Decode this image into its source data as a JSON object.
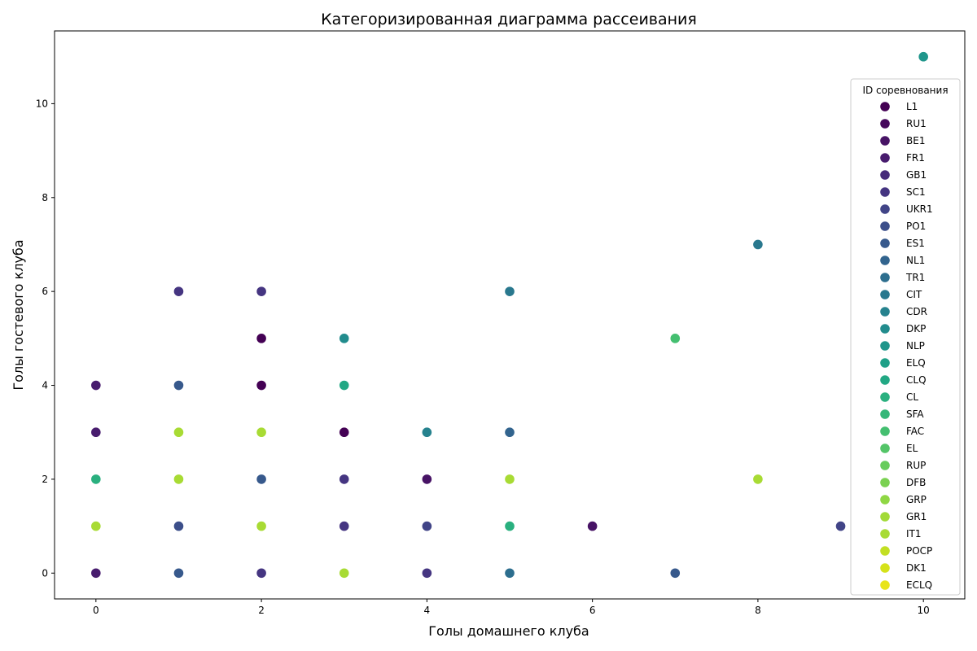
{
  "chart_data": {
    "type": "scatter",
    "title": "Категоризированная диаграмма рассеивания",
    "xlabel": "Голы домашнего клуба",
    "ylabel": "Голы гостевого клуба",
    "xlim": [
      -0.5,
      10.5
    ],
    "ylim": [
      -0.55,
      11.55
    ],
    "xticks": [
      0,
      2,
      4,
      6,
      8,
      10
    ],
    "yticks": [
      0,
      2,
      4,
      6,
      8,
      10
    ],
    "grid": false,
    "legend": {
      "title": "ID соревнования",
      "placement": "right"
    },
    "categories": [
      {
        "name": "L1",
        "color": "#440154"
      },
      {
        "name": "RU1",
        "color": "#46085c"
      },
      {
        "name": "BE1",
        "color": "#471365"
      },
      {
        "name": "FR1",
        "color": "#481c6e"
      },
      {
        "name": "GB1",
        "color": "#472a7a"
      },
      {
        "name": "SC1",
        "color": "#453581"
      },
      {
        "name": "UKR1",
        "color": "#414487"
      },
      {
        "name": "PO1",
        "color": "#3c4f8a"
      },
      {
        "name": "ES1",
        "color": "#37598c"
      },
      {
        "name": "NL1",
        "color": "#32648e"
      },
      {
        "name": "TR1",
        "color": "#2d6e8e"
      },
      {
        "name": "CIT",
        "color": "#29788e"
      },
      {
        "name": "CDR",
        "color": "#26828e"
      },
      {
        "name": "DKP",
        "color": "#228c8d"
      },
      {
        "name": "NLP",
        "color": "#1f968b"
      },
      {
        "name": "ELQ",
        "color": "#1fa088"
      },
      {
        "name": "CLQ",
        "color": "#22a884"
      },
      {
        "name": "CL",
        "color": "#2ab07f"
      },
      {
        "name": "SFA",
        "color": "#35b779"
      },
      {
        "name": "FAC",
        "color": "#44bf70"
      },
      {
        "name": "EL",
        "color": "#54c568"
      },
      {
        "name": "RUP",
        "color": "#67cc5c"
      },
      {
        "name": "DFB",
        "color": "#7ad151"
      },
      {
        "name": "GRP",
        "color": "#8fd744"
      },
      {
        "name": "GR1",
        "color": "#a2da37"
      },
      {
        "name": "IT1",
        "color": "#a8db34"
      },
      {
        "name": "POCP",
        "color": "#c2df23"
      },
      {
        "name": "DK1",
        "color": "#d5e21a"
      },
      {
        "name": "ECLQ",
        "color": "#e8e419"
      }
    ],
    "points": [
      {
        "x": 0,
        "y": 0,
        "category": "FR1"
      },
      {
        "x": 0,
        "y": 1,
        "category": "IT1"
      },
      {
        "x": 0,
        "y": 2,
        "category": "CL"
      },
      {
        "x": 0,
        "y": 3,
        "category": "FR1"
      },
      {
        "x": 0,
        "y": 4,
        "category": "FR1"
      },
      {
        "x": 1,
        "y": 0,
        "category": "ES1"
      },
      {
        "x": 1,
        "y": 1,
        "category": "PO1"
      },
      {
        "x": 1,
        "y": 2,
        "category": "IT1"
      },
      {
        "x": 1,
        "y": 3,
        "category": "IT1"
      },
      {
        "x": 1,
        "y": 4,
        "category": "ES1"
      },
      {
        "x": 1,
        "y": 6,
        "category": "SC1"
      },
      {
        "x": 2,
        "y": 0,
        "category": "SC1"
      },
      {
        "x": 2,
        "y": 1,
        "category": "IT1"
      },
      {
        "x": 2,
        "y": 2,
        "category": "ES1"
      },
      {
        "x": 2,
        "y": 3,
        "category": "IT1"
      },
      {
        "x": 2,
        "y": 4,
        "category": "L1"
      },
      {
        "x": 2,
        "y": 5,
        "category": "L1"
      },
      {
        "x": 2,
        "y": 6,
        "category": "SC1"
      },
      {
        "x": 3,
        "y": 0,
        "category": "IT1"
      },
      {
        "x": 3,
        "y": 1,
        "category": "SC1"
      },
      {
        "x": 3,
        "y": 2,
        "category": "SC1"
      },
      {
        "x": 3,
        "y": 3,
        "category": "L1"
      },
      {
        "x": 3,
        "y": 4,
        "category": "CLQ"
      },
      {
        "x": 3,
        "y": 5,
        "category": "DKP"
      },
      {
        "x": 4,
        "y": 0,
        "category": "SC1"
      },
      {
        "x": 4,
        "y": 1,
        "category": "UKR1"
      },
      {
        "x": 4,
        "y": 2,
        "category": "BE1"
      },
      {
        "x": 4,
        "y": 3,
        "category": "CDR"
      },
      {
        "x": 5,
        "y": 0,
        "category": "TR1"
      },
      {
        "x": 5,
        "y": 1,
        "category": "CL"
      },
      {
        "x": 5,
        "y": 2,
        "category": "IT1"
      },
      {
        "x": 5,
        "y": 3,
        "category": "NL1"
      },
      {
        "x": 5,
        "y": 6,
        "category": "CIT"
      },
      {
        "x": 6,
        "y": 1,
        "category": "BE1"
      },
      {
        "x": 7,
        "y": 0,
        "category": "ES1"
      },
      {
        "x": 7,
        "y": 5,
        "category": "FAC"
      },
      {
        "x": 8,
        "y": 2,
        "category": "IT1"
      },
      {
        "x": 8,
        "y": 7,
        "category": "CIT"
      },
      {
        "x": 9,
        "y": 1,
        "category": "UKR1"
      },
      {
        "x": 10,
        "y": 11,
        "category": "NLP"
      }
    ]
  }
}
